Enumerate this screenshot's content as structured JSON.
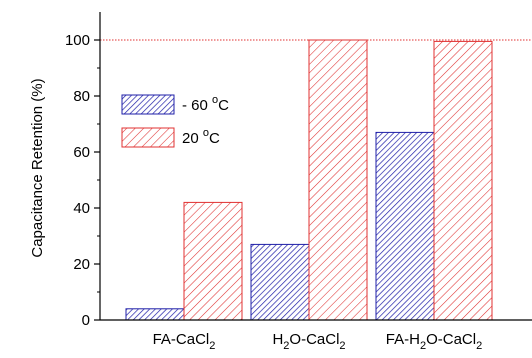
{
  "chart_data": {
    "type": "bar",
    "title": "",
    "xlabel": "",
    "ylabel": "Capacitance Retention (%)",
    "ylim": [
      0,
      110
    ],
    "yticks": [
      0,
      20,
      40,
      60,
      80,
      100
    ],
    "categories": [
      {
        "base": "FA-CaCl",
        "sub": "2"
      },
      {
        "base": "H",
        "sub": "2",
        "mid": "O-CaCl",
        "sub2": "2"
      },
      {
        "base": "FA-H",
        "sub": "2",
        "mid": "O-CaCl",
        "sub2": "2"
      }
    ],
    "series": [
      {
        "name": "- 60 °C",
        "legend_text": "- 60 ",
        "legend_sup": "o",
        "legend_unit": "C",
        "color": "#1f1fa8",
        "pattern": "hatch-dense",
        "values": [
          4,
          27,
          67
        ]
      },
      {
        "name": "20 °C",
        "legend_text": "20 ",
        "legend_sup": "o",
        "legend_unit": "C",
        "color": "#e03030",
        "pattern": "hatch-wide",
        "values": [
          42,
          100,
          99.5
        ]
      }
    ],
    "reference_line": {
      "y": 100,
      "color": "#e03030",
      "style": "dotted"
    },
    "legend_position": "upper-left",
    "grid": false
  }
}
